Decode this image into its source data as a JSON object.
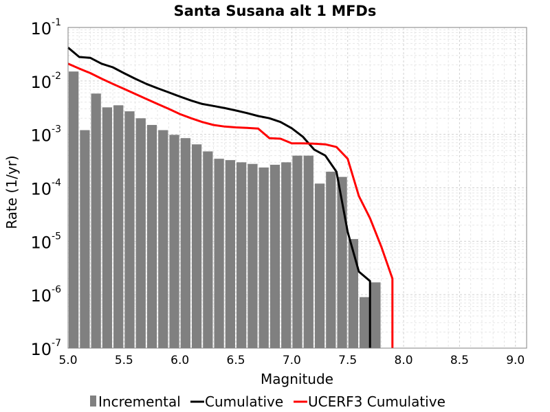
{
  "chart_data": {
    "type": "bar",
    "title": "Santa Susana alt 1 MFDs",
    "xlabel": "Magnitude",
    "ylabel": "Rate (1/yr)",
    "xlim": [
      5.0,
      9.1
    ],
    "ylim": [
      1e-07,
      0.1
    ],
    "yscale": "log",
    "grid": true,
    "legend_position": "bottom",
    "x_ticks": [
      "5.0",
      "5.5",
      "6.0",
      "6.5",
      "7.0",
      "7.5",
      "8.0",
      "8.5",
      "9.0"
    ],
    "y_ticks": [
      {
        "base": "10",
        "exp": "-1"
      },
      {
        "base": "10",
        "exp": "-2"
      },
      {
        "base": "10",
        "exp": "-3"
      },
      {
        "base": "10",
        "exp": "-4"
      },
      {
        "base": "10",
        "exp": "-5"
      },
      {
        "base": "10",
        "exp": "-6"
      },
      {
        "base": "10",
        "exp": "-7"
      }
    ],
    "series": [
      {
        "name": "Incremental",
        "kind": "bar",
        "color": "#808080",
        "x": [
          5.05,
          5.15,
          5.25,
          5.35,
          5.45,
          5.55,
          5.65,
          5.75,
          5.85,
          5.95,
          6.05,
          6.15,
          6.25,
          6.35,
          6.45,
          6.55,
          6.65,
          6.75,
          6.85,
          6.95,
          7.05,
          7.15,
          7.25,
          7.35,
          7.45,
          7.55,
          7.65,
          7.75
        ],
        "y": [
          0.015,
          0.0012,
          0.0058,
          0.0032,
          0.0035,
          0.0027,
          0.002,
          0.0015,
          0.0012,
          0.00098,
          0.00085,
          0.00065,
          0.00048,
          0.00035,
          0.00033,
          0.0003,
          0.00028,
          0.00024,
          0.00027,
          0.0003,
          0.0004,
          0.0004,
          0.00012,
          0.0002,
          0.00016,
          1.1e-05,
          9e-07,
          1.7e-06
        ]
      },
      {
        "name": "Cumulative",
        "kind": "line",
        "color": "#000000",
        "x": [
          5.0,
          5.1,
          5.2,
          5.3,
          5.4,
          5.5,
          5.6,
          5.7,
          5.8,
          5.9,
          6.0,
          6.1,
          6.2,
          6.3,
          6.4,
          6.5,
          6.6,
          6.7,
          6.8,
          6.9,
          7.0,
          7.1,
          7.2,
          7.3,
          7.4,
          7.5,
          7.6,
          7.7,
          7.7
        ],
        "y": [
          0.042,
          0.028,
          0.027,
          0.021,
          0.018,
          0.014,
          0.011,
          0.0088,
          0.0073,
          0.0061,
          0.0051,
          0.0043,
          0.0037,
          0.0034,
          0.0031,
          0.0028,
          0.0025,
          0.0022,
          0.002,
          0.0017,
          0.0013,
          0.0009,
          0.00052,
          0.0004,
          0.0002,
          1.5e-05,
          2.7e-06,
          1.8e-06,
          1e-07
        ]
      },
      {
        "name": "UCERF3 Cumulative",
        "kind": "line",
        "color": "#ff0000",
        "x": [
          5.0,
          5.1,
          5.2,
          5.3,
          5.4,
          5.5,
          5.6,
          5.7,
          5.8,
          5.9,
          6.0,
          6.1,
          6.2,
          6.3,
          6.4,
          6.5,
          6.6,
          6.7,
          6.8,
          6.9,
          7.0,
          7.1,
          7.2,
          7.3,
          7.4,
          7.5,
          7.6,
          7.7,
          7.8,
          7.9,
          7.9
        ],
        "y": [
          0.021,
          0.017,
          0.014,
          0.011,
          0.0088,
          0.0071,
          0.0057,
          0.0046,
          0.0037,
          0.003,
          0.0024,
          0.002,
          0.0017,
          0.0015,
          0.0014,
          0.00135,
          0.00132,
          0.00128,
          0.00085,
          0.00083,
          0.00068,
          0.00068,
          0.00067,
          0.00065,
          0.00058,
          0.00035,
          7e-05,
          2.7e-05,
          8e-06,
          2e-06,
          1e-07
        ]
      }
    ]
  }
}
